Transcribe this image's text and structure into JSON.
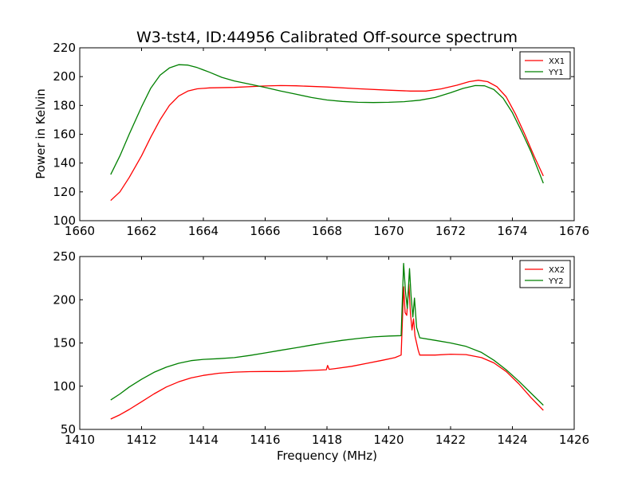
{
  "title": "W3-tst4, ID:44956 Calibrated Off-source spectrum",
  "colors": {
    "red": "#ff0000",
    "green": "#008000"
  },
  "chart_data": [
    {
      "type": "line",
      "xlabel": "",
      "ylabel": "Power in Kelvin",
      "xlim": [
        1660,
        1676
      ],
      "ylim": [
        100,
        220
      ],
      "xticks": [
        1660,
        1662,
        1664,
        1666,
        1668,
        1670,
        1672,
        1674,
        1676
      ],
      "yticks": [
        100,
        120,
        140,
        160,
        180,
        200,
        220
      ],
      "grid": false,
      "legend_position": "top-right",
      "series": [
        {
          "name": "XX1",
          "color": "#ff0000",
          "points": [
            [
              1661.0,
              114
            ],
            [
              1661.3,
              120
            ],
            [
              1661.6,
              130
            ],
            [
              1662.0,
              145
            ],
            [
              1662.3,
              158
            ],
            [
              1662.6,
              170
            ],
            [
              1662.9,
              180
            ],
            [
              1663.2,
              186.5
            ],
            [
              1663.5,
              190
            ],
            [
              1663.8,
              191.5
            ],
            [
              1664.2,
              192.2
            ],
            [
              1665.0,
              192.5
            ],
            [
              1666.0,
              193.5
            ],
            [
              1666.5,
              193.8
            ],
            [
              1667.0,
              193.6
            ],
            [
              1668.0,
              192.8
            ],
            [
              1669.0,
              191.6
            ],
            [
              1670.0,
              190.6
            ],
            [
              1670.7,
              190
            ],
            [
              1671.2,
              190
            ],
            [
              1671.7,
              191.5
            ],
            [
              1672.2,
              194
            ],
            [
              1672.6,
              196.5
            ],
            [
              1672.9,
              197.5
            ],
            [
              1673.2,
              196.5
            ],
            [
              1673.5,
              193
            ],
            [
              1673.8,
              186
            ],
            [
              1674.1,
              174
            ],
            [
              1674.4,
              160
            ],
            [
              1674.7,
              145
            ],
            [
              1675.0,
              131
            ]
          ]
        },
        {
          "name": "YY1",
          "color": "#008000",
          "points": [
            [
              1661.0,
              132
            ],
            [
              1661.3,
              145
            ],
            [
              1661.6,
              160
            ],
            [
              1662.0,
              179
            ],
            [
              1662.3,
              192
            ],
            [
              1662.6,
              201
            ],
            [
              1662.9,
              206
            ],
            [
              1663.2,
              208.3
            ],
            [
              1663.5,
              208
            ],
            [
              1663.8,
              206.3
            ],
            [
              1664.2,
              203
            ],
            [
              1664.6,
              199.5
            ],
            [
              1665.0,
              197
            ],
            [
              1665.5,
              194.8
            ],
            [
              1666.0,
              192.5
            ],
            [
              1666.5,
              190
            ],
            [
              1667.0,
              187.8
            ],
            [
              1667.5,
              185.5
            ],
            [
              1668.0,
              183.8
            ],
            [
              1668.5,
              182.8
            ],
            [
              1669.0,
              182.2
            ],
            [
              1669.5,
              182.0
            ],
            [
              1670.0,
              182.2
            ],
            [
              1670.5,
              182.6
            ],
            [
              1671.0,
              183.6
            ],
            [
              1671.5,
              185.5
            ],
            [
              1672.0,
              188.8
            ],
            [
              1672.4,
              191.8
            ],
            [
              1672.8,
              193.8
            ],
            [
              1673.1,
              193.6
            ],
            [
              1673.4,
              191
            ],
            [
              1673.7,
              185
            ],
            [
              1674.0,
              175
            ],
            [
              1674.3,
              162
            ],
            [
              1674.6,
              148
            ],
            [
              1675.0,
              126
            ]
          ]
        }
      ]
    },
    {
      "type": "line",
      "xlabel": "Frequency (MHz)",
      "ylabel": "",
      "xlim": [
        1410,
        1426
      ],
      "ylim": [
        50,
        250
      ],
      "xticks": [
        1410,
        1412,
        1414,
        1416,
        1418,
        1420,
        1422,
        1424,
        1426
      ],
      "yticks": [
        50,
        100,
        150,
        200,
        250
      ],
      "grid": false,
      "legend_position": "top-right",
      "series": [
        {
          "name": "XX2",
          "color": "#ff0000",
          "points": [
            [
              1411.0,
              62
            ],
            [
              1411.3,
              67
            ],
            [
              1411.6,
              73
            ],
            [
              1412.0,
              82
            ],
            [
              1412.4,
              91
            ],
            [
              1412.8,
              99
            ],
            [
              1413.2,
              105
            ],
            [
              1413.6,
              109.5
            ],
            [
              1414.0,
              112.5
            ],
            [
              1414.5,
              115
            ],
            [
              1415.0,
              116.3
            ],
            [
              1415.5,
              116.8
            ],
            [
              1416.0,
              117
            ],
            [
              1416.5,
              117
            ],
            [
              1417.0,
              117.5
            ],
            [
              1417.5,
              118.2
            ],
            [
              1417.98,
              119
            ],
            [
              1418.02,
              124
            ],
            [
              1418.07,
              119.5
            ],
            [
              1418.3,
              120.5
            ],
            [
              1418.8,
              123
            ],
            [
              1419.3,
              126.5
            ],
            [
              1419.8,
              130
            ],
            [
              1420.2,
              133
            ],
            [
              1420.4,
              136
            ],
            [
              1420.48,
              215
            ],
            [
              1420.53,
              185
            ],
            [
              1420.58,
              182
            ],
            [
              1420.65,
              218
            ],
            [
              1420.7,
              185
            ],
            [
              1420.75,
              165
            ],
            [
              1420.8,
              178
            ],
            [
              1420.85,
              158
            ],
            [
              1420.95,
              142
            ],
            [
              1421.0,
              136
            ],
            [
              1421.5,
              136
            ],
            [
              1422.0,
              137
            ],
            [
              1422.5,
              136.5
            ],
            [
              1423.0,
              133
            ],
            [
              1423.4,
              127
            ],
            [
              1423.8,
              117
            ],
            [
              1424.2,
              103
            ],
            [
              1424.6,
              87
            ],
            [
              1425.0,
              72
            ]
          ]
        },
        {
          "name": "YY2",
          "color": "#008000",
          "points": [
            [
              1411.0,
              84
            ],
            [
              1411.3,
              91
            ],
            [
              1411.6,
              99
            ],
            [
              1412.0,
              108
            ],
            [
              1412.4,
              116
            ],
            [
              1412.8,
              122
            ],
            [
              1413.2,
              126.5
            ],
            [
              1413.6,
              129.5
            ],
            [
              1414.0,
              131
            ],
            [
              1414.5,
              131.8
            ],
            [
              1415.0,
              133
            ],
            [
              1415.5,
              135.5
            ],
            [
              1416.0,
              138.5
            ],
            [
              1416.5,
              141.5
            ],
            [
              1417.0,
              144.5
            ],
            [
              1417.5,
              147.5
            ],
            [
              1418.0,
              150.5
            ],
            [
              1418.5,
              153
            ],
            [
              1419.0,
              155.2
            ],
            [
              1419.5,
              157
            ],
            [
              1420.0,
              158
            ],
            [
              1420.4,
              158.5
            ],
            [
              1420.48,
              242
            ],
            [
              1420.54,
              210
            ],
            [
              1420.6,
              190
            ],
            [
              1420.67,
              236
            ],
            [
              1420.72,
              205
            ],
            [
              1420.78,
              180
            ],
            [
              1420.83,
              202
            ],
            [
              1420.9,
              168
            ],
            [
              1421.0,
              156
            ],
            [
              1421.5,
              153
            ],
            [
              1422.0,
              150
            ],
            [
              1422.5,
              146
            ],
            [
              1423.0,
              139
            ],
            [
              1423.4,
              130
            ],
            [
              1423.8,
              119
            ],
            [
              1424.2,
              106
            ],
            [
              1424.6,
              92
            ],
            [
              1425.0,
              78
            ]
          ]
        }
      ]
    }
  ]
}
